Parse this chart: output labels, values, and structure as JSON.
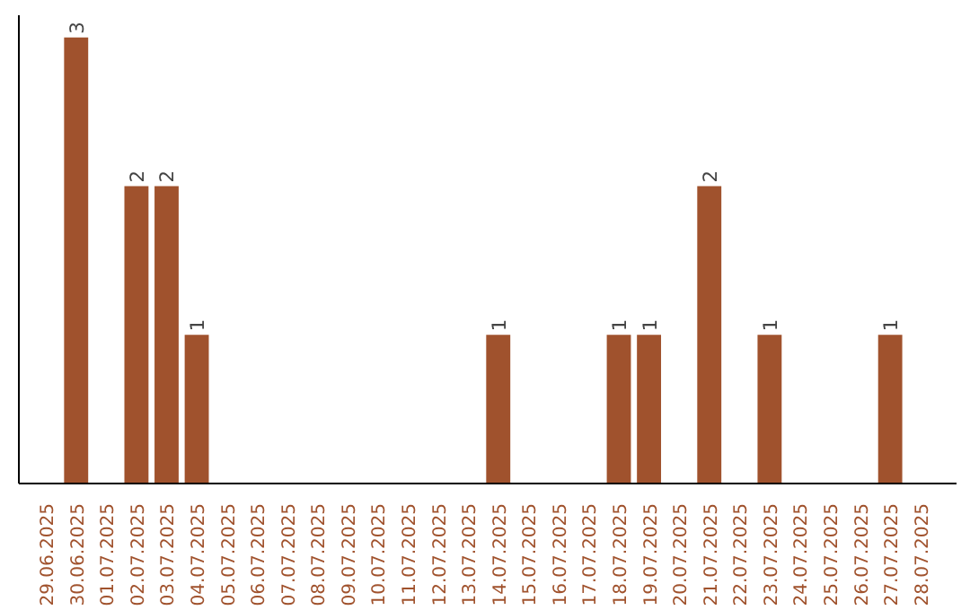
{
  "chart_data": {
    "type": "bar",
    "categories": [
      "29.06.2025",
      "30.06.2025",
      "01.07.2025",
      "02.07.2025",
      "03.07.2025",
      "04.07.2025",
      "05.07.2025",
      "06.07.2025",
      "07.07.2025",
      "08.07.2025",
      "09.07.2025",
      "10.07.2025",
      "11.07.2025",
      "12.07.2025",
      "13.07.2025",
      "14.07.2025",
      "15.07.2025",
      "16.07.2025",
      "17.07.2025",
      "18.07.2025",
      "19.07.2025",
      "20.07.2025",
      "21.07.2025",
      "22.07.2025",
      "23.07.2025",
      "24.07.2025",
      "25.07.2025",
      "26.07.2025",
      "27.07.2025",
      "28.07.2025"
    ],
    "values": [
      0,
      3,
      0,
      2,
      2,
      1,
      0,
      0,
      0,
      0,
      0,
      0,
      0,
      0,
      0,
      1,
      0,
      0,
      0,
      1,
      1,
      0,
      2,
      0,
      1,
      0,
      0,
      0,
      1,
      0
    ],
    "value_labels": [
      null,
      "3",
      null,
      "2",
      "2",
      "1",
      null,
      null,
      null,
      null,
      null,
      null,
      null,
      null,
      null,
      "1",
      null,
      null,
      null,
      "1",
      "1",
      null,
      "2",
      null,
      "1",
      null,
      null,
      null,
      "1",
      null
    ],
    "color": "#a0522d",
    "grid": false,
    "tick_labels": "x"
  }
}
